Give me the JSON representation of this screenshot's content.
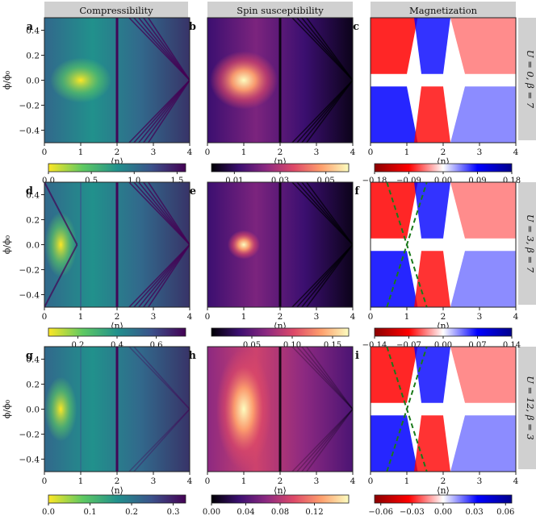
{
  "column_titles": [
    "Compressibility",
    "Spin susceptibility",
    "Magnetization"
  ],
  "row_labels": [
    "U = 0, β = 7",
    "U = 3, β = 7",
    "U = 12, β = 3"
  ],
  "panel_letters": [
    "a",
    "b",
    "c",
    "d",
    "e",
    "f",
    "g",
    "h",
    "i"
  ],
  "axis_labels": {
    "x": "⟨n⟩",
    "y": "ϕ/ϕ₀"
  },
  "colors": {
    "viridis_like": [
      "#440154",
      "#3b528b",
      "#21918c",
      "#5ec962",
      "#fde725"
    ],
    "magma_like": [
      "#000004",
      "#3b0f70",
      "#8c2981",
      "#de4968",
      "#fe9f6d",
      "#fcfdbf"
    ],
    "seismic_like": [
      "#8b0000",
      "#ff0000",
      "#ffffff",
      "#0000ff",
      "#00008b"
    ],
    "guide_line": "#1a7a1a",
    "header_bg": "#d0d0d0"
  },
  "chart_data": [
    {
      "panel": "a",
      "type": "heatmap",
      "quantity": "Compressibility",
      "row": "U = 0, β = 7",
      "colormap": "viridis_r",
      "x_range": [
        0,
        4
      ],
      "y_range": [
        -0.5,
        0.5
      ],
      "x_ticks": [
        "0",
        "1",
        "2",
        "3",
        "4"
      ],
      "y_ticks": [
        "0.4",
        "0.2",
        "0.0",
        "−0.2",
        "−0.4"
      ],
      "colorbar": {
        "range": [
          0,
          1.6
        ],
        "ticks": [
          "0.0",
          "0.5",
          "1.0",
          "1.5"
        ]
      }
    },
    {
      "panel": "b",
      "type": "heatmap",
      "quantity": "Spin susceptibility",
      "row": "U = 0, β = 7",
      "colormap": "magma",
      "x_range": [
        0,
        4
      ],
      "y_range": [
        -0.5,
        0.5
      ],
      "x_ticks": [
        "0",
        "1",
        "2",
        "3",
        "4"
      ],
      "colorbar": {
        "range": [
          0,
          0.06
        ],
        "ticks": [
          "0.01",
          "0.03",
          "0.05"
        ]
      }
    },
    {
      "panel": "c",
      "type": "heatmap",
      "quantity": "Magnetization",
      "row": "U = 0, β = 7",
      "colormap": "seismic_r",
      "x_range": [
        0,
        4
      ],
      "y_range": [
        -0.5,
        0.5
      ],
      "x_ticks": [
        "0",
        "1",
        "2",
        "3",
        "4"
      ],
      "colorbar": {
        "range": [
          -0.18,
          0.18
        ],
        "ticks": [
          "−0.18",
          "−0.09",
          "0.00",
          "0.09",
          "0.18"
        ]
      }
    },
    {
      "panel": "d",
      "type": "heatmap",
      "quantity": "Compressibility",
      "row": "U = 3, β = 7",
      "colormap": "viridis_r",
      "x_range": [
        0,
        4
      ],
      "y_range": [
        -0.5,
        0.5
      ],
      "x_ticks": [
        "0",
        "1",
        "2",
        "3",
        "4"
      ],
      "y_ticks": [
        "0.4",
        "0.2",
        "0.0",
        "−0.2",
        "−0.4"
      ],
      "colorbar": {
        "range": [
          0.05,
          0.75
        ],
        "ticks": [
          "0.2",
          "0.4",
          "0.6"
        ]
      }
    },
    {
      "panel": "e",
      "type": "heatmap",
      "quantity": "Spin susceptibility",
      "row": "U = 3, β = 7",
      "colormap": "magma",
      "x_range": [
        0,
        4
      ],
      "y_range": [
        -0.5,
        0.5
      ],
      "x_ticks": [
        "0",
        "1",
        "2",
        "3",
        "4"
      ],
      "colorbar": {
        "range": [
          0,
          0.17
        ],
        "ticks": [
          "0.05",
          "0.10",
          "0.15"
        ]
      }
    },
    {
      "panel": "f",
      "type": "heatmap",
      "quantity": "Magnetization",
      "row": "U = 3, β = 7",
      "colormap": "seismic_r",
      "x_range": [
        0,
        4
      ],
      "y_range": [
        -0.5,
        0.5
      ],
      "x_ticks": [
        "0",
        "1",
        "2",
        "3",
        "4"
      ],
      "colorbar": {
        "range": [
          -0.14,
          0.14
        ],
        "ticks": [
          "−0.14",
          "−0.07",
          "0.00",
          "0.07",
          "0.14"
        ]
      },
      "guide_lines": [
        {
          "from": [
            0.45,
            0.5
          ],
          "to": [
            1.55,
            -0.5
          ]
        },
        {
          "from": [
            0.45,
            -0.5
          ],
          "to": [
            1.55,
            0.5
          ]
        }
      ]
    },
    {
      "panel": "g",
      "type": "heatmap",
      "quantity": "Compressibility",
      "row": "U = 12, β = 3",
      "colormap": "viridis_r",
      "x_range": [
        0,
        4
      ],
      "y_range": [
        -0.5,
        0.5
      ],
      "x_ticks": [
        "0",
        "1",
        "2",
        "3",
        "4"
      ],
      "y_ticks": [
        "0.4",
        "0.2",
        "0.0",
        "−0.2",
        "−0.4"
      ],
      "colorbar": {
        "range": [
          0,
          0.33
        ],
        "ticks": [
          "0.0",
          "0.1",
          "0.2",
          "0.3"
        ]
      }
    },
    {
      "panel": "h",
      "type": "heatmap",
      "quantity": "Spin susceptibility",
      "row": "U = 12, β = 3",
      "colormap": "magma",
      "x_range": [
        0,
        4
      ],
      "y_range": [
        -0.5,
        0.5
      ],
      "x_ticks": [
        "0",
        "1",
        "2",
        "3",
        "4"
      ],
      "colorbar": {
        "range": [
          0,
          0.16
        ],
        "ticks": [
          "0.00",
          "0.04",
          "0.08",
          "0.12"
        ]
      }
    },
    {
      "panel": "i",
      "type": "heatmap",
      "quantity": "Magnetization",
      "row": "U = 12, β = 3",
      "colormap": "seismic_r",
      "x_range": [
        0,
        4
      ],
      "y_range": [
        -0.5,
        0.5
      ],
      "x_ticks": [
        "0",
        "1",
        "2",
        "3",
        "4"
      ],
      "colorbar": {
        "range": [
          -0.066,
          0.066
        ],
        "ticks": [
          "−0.06",
          "−0.03",
          "0.00",
          "0.03",
          "0.06"
        ]
      },
      "guide_lines": [
        {
          "from": [
            0.45,
            0.5
          ],
          "to": [
            1.55,
            -0.5
          ]
        },
        {
          "from": [
            0.45,
            -0.5
          ],
          "to": [
            1.55,
            0.5
          ]
        }
      ]
    }
  ]
}
